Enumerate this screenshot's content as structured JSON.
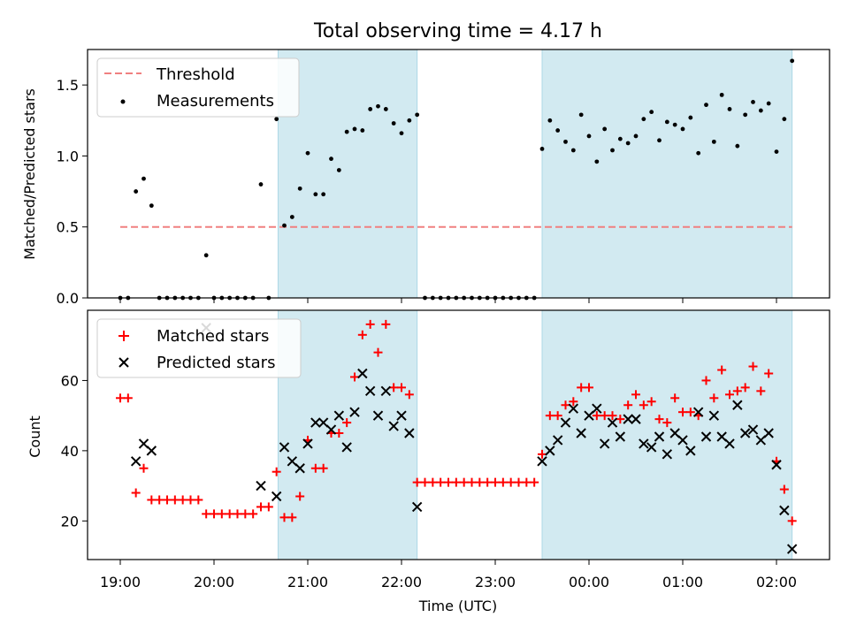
{
  "title": "Total observing time = 4.17 h",
  "colors": {
    "threshold": "#f08080",
    "measurements": "#000000",
    "matched": "#ff0000",
    "predicted": "#000000",
    "shade": "#add8e6"
  },
  "chart_data": [
    {
      "type": "scatter",
      "ylabel": "Matched/Predicted stars",
      "ylim": [
        0,
        1.75
      ],
      "yticks": [
        "0.0",
        "0.5",
        "1.0",
        "1.5"
      ],
      "legend": [
        "Threshold",
        "Measurements"
      ],
      "legend_position": "top-left",
      "threshold": 0.5,
      "shaded_intervals": [
        [
          "20:41",
          "22:10"
        ],
        [
          "23:30",
          "02:10"
        ]
      ],
      "series": [
        {
          "name": "Measurements",
          "x": [
            "19:00",
            "19:05",
            "19:10",
            "19:15",
            "19:20",
            "19:25",
            "19:30",
            "19:35",
            "19:40",
            "19:45",
            "19:50",
            "19:55",
            "20:00",
            "20:05",
            "20:10",
            "20:15",
            "20:20",
            "20:25",
            "20:30",
            "20:35",
            "20:40",
            "20:45",
            "20:50",
            "20:55",
            "21:00",
            "21:05",
            "21:10",
            "21:15",
            "21:20",
            "21:25",
            "21:30",
            "21:35",
            "21:40",
            "21:45",
            "21:50",
            "21:55",
            "22:00",
            "22:05",
            "22:10",
            "22:15",
            "22:20",
            "22:25",
            "22:30",
            "22:35",
            "22:40",
            "22:45",
            "22:50",
            "22:55",
            "23:00",
            "23:05",
            "23:10",
            "23:15",
            "23:20",
            "23:25",
            "23:30",
            "23:35",
            "23:40",
            "23:45",
            "23:50",
            "23:55",
            "00:00",
            "00:05",
            "00:10",
            "00:15",
            "00:20",
            "00:25",
            "00:30",
            "00:35",
            "00:40",
            "00:45",
            "00:50",
            "00:55",
            "01:00",
            "01:05",
            "01:10",
            "01:15",
            "01:20",
            "01:25",
            "01:30",
            "01:35",
            "01:40",
            "01:45",
            "01:50",
            "01:55",
            "02:00",
            "02:05",
            "02:10"
          ],
          "y": [
            0,
            0,
            0.75,
            0.84,
            0.65,
            0,
            0,
            0,
            0,
            0,
            0,
            0.3,
            0,
            0,
            0,
            0,
            0,
            0,
            0.8,
            0,
            1.26,
            0.51,
            0.57,
            0.77,
            1.02,
            0.73,
            0.73,
            0.98,
            0.9,
            1.17,
            1.19,
            1.18,
            1.33,
            1.35,
            1.33,
            1.23,
            1.16,
            1.25,
            1.29,
            0,
            0,
            0,
            0,
            0,
            0,
            0,
            0,
            0,
            0,
            0,
            0,
            0,
            0,
            0,
            1.05,
            1.25,
            1.18,
            1.1,
            1.04,
            1.29,
            1.14,
            0.96,
            1.19,
            1.04,
            1.12,
            1.09,
            1.14,
            1.26,
            1.31,
            1.11,
            1.24,
            1.22,
            1.19,
            1.27,
            1.02,
            1.36,
            1.1,
            1.43,
            1.33,
            1.07,
            1.29,
            1.38,
            1.32,
            1.37,
            1.03,
            1.26,
            1.67
          ]
        }
      ]
    },
    {
      "type": "scatter",
      "ylabel": "Count",
      "xlabel": "Time (UTC)",
      "ylim": [
        9,
        80
      ],
      "yticks": [
        "20",
        "40",
        "60"
      ],
      "xticks": [
        "19:00",
        "20:00",
        "21:00",
        "22:00",
        "23:00",
        "00:00",
        "01:00",
        "02:00"
      ],
      "legend": [
        "Matched stars",
        "Predicted stars"
      ],
      "legend_position": "top-left",
      "shaded_intervals": [
        [
          "20:41",
          "22:10"
        ],
        [
          "23:30",
          "02:10"
        ]
      ],
      "series": [
        {
          "name": "Matched stars",
          "x": [
            "19:00",
            "19:05",
            "19:10",
            "19:15",
            "19:20",
            "19:25",
            "19:30",
            "19:35",
            "19:40",
            "19:45",
            "19:50",
            "19:55",
            "20:00",
            "20:05",
            "20:10",
            "20:15",
            "20:20",
            "20:25",
            "20:30",
            "20:35",
            "20:40",
            "20:45",
            "20:50",
            "20:55",
            "21:00",
            "21:05",
            "21:10",
            "21:15",
            "21:20",
            "21:25",
            "21:30",
            "21:35",
            "21:40",
            "21:45",
            "21:50",
            "21:55",
            "22:00",
            "22:05",
            "22:10",
            "22:15",
            "22:20",
            "22:25",
            "22:30",
            "22:35",
            "22:40",
            "22:45",
            "22:50",
            "22:55",
            "23:00",
            "23:05",
            "23:10",
            "23:15",
            "23:20",
            "23:25",
            "23:30",
            "23:35",
            "23:40",
            "23:45",
            "23:50",
            "23:55",
            "00:00",
            "00:05",
            "00:10",
            "00:15",
            "00:20",
            "00:25",
            "00:30",
            "00:35",
            "00:40",
            "00:45",
            "00:50",
            "00:55",
            "01:00",
            "01:05",
            "01:10",
            "01:15",
            "01:20",
            "01:25",
            "01:30",
            "01:35",
            "01:40",
            "01:45",
            "01:50",
            "01:55",
            "02:00",
            "02:05",
            "02:10"
          ],
          "y": [
            55,
            55,
            28,
            35,
            26,
            26,
            26,
            26,
            26,
            26,
            26,
            22,
            22,
            22,
            22,
            22,
            22,
            22,
            24,
            24,
            34,
            21,
            21,
            27,
            43,
            35,
            35,
            45,
            45,
            48,
            61,
            73,
            76,
            68,
            76,
            58,
            58,
            56,
            31,
            31,
            31,
            31,
            31,
            31,
            31,
            31,
            31,
            31,
            31,
            31,
            31,
            31,
            31,
            31,
            39,
            50,
            50,
            53,
            54,
            58,
            58,
            50,
            50,
            50,
            49,
            53,
            56,
            53,
            54,
            49,
            48,
            55,
            51,
            51,
            50,
            60,
            55,
            63,
            56,
            57,
            58,
            64,
            57,
            62,
            37,
            29,
            20
          ]
        },
        {
          "name": "Predicted stars",
          "x": [
            "19:55",
            "20:30",
            "20:40",
            "20:45",
            "20:50",
            "20:55",
            "21:00",
            "21:05",
            "21:10",
            "21:15",
            "21:20",
            "21:25",
            "21:30",
            "21:35",
            "21:40",
            "21:45",
            "21:50",
            "21:55",
            "22:00",
            "22:05",
            "22:10",
            "23:30",
            "23:35",
            "23:40",
            "23:45",
            "23:50",
            "23:55",
            "00:00",
            "00:05",
            "00:10",
            "00:15",
            "00:20",
            "00:25",
            "00:30",
            "00:35",
            "00:40",
            "00:45",
            "00:50",
            "00:55",
            "01:00",
            "01:05",
            "01:10",
            "01:15",
            "01:20",
            "01:25",
            "01:30",
            "01:35",
            "01:40",
            "01:45",
            "01:50",
            "01:55",
            "02:00",
            "02:05",
            "02:10",
            "19:10",
            "19:15",
            "19:20"
          ],
          "y": [
            75,
            30,
            27,
            41,
            37,
            35,
            42,
            48,
            48,
            46,
            50,
            41,
            51,
            62,
            57,
            50,
            57,
            47,
            50,
            45,
            24,
            37,
            40,
            43,
            48,
            52,
            45,
            50,
            52,
            42,
            48,
            44,
            49,
            49,
            42,
            41,
            44,
            39,
            45,
            43,
            40,
            51,
            44,
            50,
            44,
            42,
            53,
            45,
            46,
            43,
            45,
            36,
            23,
            12,
            37,
            42,
            40
          ]
        }
      ]
    }
  ]
}
